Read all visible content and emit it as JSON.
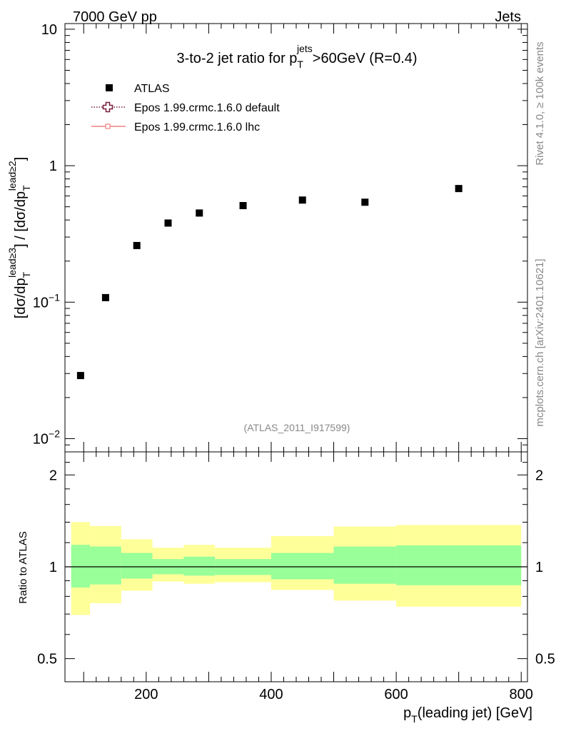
{
  "chart_data": [
    {
      "type": "scatter",
      "panel": "main",
      "header_left": "7000 GeV pp",
      "header_right": "Jets",
      "title": {
        "main": "3-to-2 jet ratio for p",
        "sub": "T",
        "sup": "jets",
        "tail": ">60GeV (R=0.4)"
      },
      "ylabel": {
        "a": "[dσ/dp",
        "a_sub": "T",
        "a_sup": "lead≥3",
        "mid": "] / [dσ/dp",
        "b_sub": "T",
        "b_sup": "lead≥2",
        "end": "]"
      },
      "yscale": "log",
      "ylim": [
        0.008,
        11
      ],
      "xlim": [
        70,
        810
      ],
      "y_tick_labels": [
        {
          "value": 10,
          "label": "10"
        },
        {
          "value": 1,
          "label": "1"
        },
        {
          "value": 0.1,
          "label": "10",
          "exp": "−1"
        },
        {
          "value": 0.01,
          "label": "10",
          "exp": "−2"
        }
      ],
      "series": [
        {
          "name": "ATLAS",
          "marker": "square",
          "color": "#000000",
          "x": [
            95,
            135,
            185,
            235,
            285,
            355,
            450,
            550,
            700
          ],
          "values": [
            0.029,
            0.108,
            0.26,
            0.38,
            0.45,
            0.51,
            0.56,
            0.54,
            0.68
          ]
        }
      ],
      "legend": [
        {
          "label": "ATLAS",
          "style": "square",
          "color": "#000000"
        },
        {
          "label": "Epos 1.99.crmc.1.6.0 default",
          "style": "open-cross-dotted",
          "color": "#7a1f3d"
        },
        {
          "label": "Epos 1.99.crmc.1.6.0 lhc",
          "style": "line-marker",
          "color": "#f08080"
        }
      ],
      "legend_position": "top-left",
      "watermark": "(ATLAS_2011_I917599)",
      "side_top": "Rivet 4.1.0, ≥ 100k events",
      "side_bottom": "mcplots.cern.ch [arXiv:2401.10621]"
    },
    {
      "type": "area",
      "panel": "ratio",
      "ylabel": "Ratio to ATLAS",
      "xlabel": {
        "main": "p",
        "sub": "T",
        "tail": "(leading jet) [GeV]"
      },
      "yscale": "log",
      "ylim": [
        0.42,
        2.38
      ],
      "xlim": [
        70,
        810
      ],
      "x_ticks": [
        200,
        400,
        600,
        800
      ],
      "x_tick_labels": [
        "200",
        "400",
        "600",
        "800"
      ],
      "y_ticks": [
        0.5,
        1,
        2
      ],
      "y_tick_labels": [
        "0.5",
        "1",
        "2"
      ],
      "reference_line": 1,
      "bands": [
        {
          "x0": 80,
          "x1": 110,
          "yellow": [
            0.695,
            1.4
          ],
          "green": [
            0.855,
            1.18
          ]
        },
        {
          "x0": 110,
          "x1": 160,
          "yellow": [
            0.76,
            1.36
          ],
          "green": [
            0.875,
            1.165
          ]
        },
        {
          "x0": 160,
          "x1": 210,
          "yellow": [
            0.835,
            1.23
          ],
          "green": [
            0.915,
            1.11
          ]
        },
        {
          "x0": 210,
          "x1": 260,
          "yellow": [
            0.895,
            1.155
          ],
          "green": [
            0.945,
            1.06
          ]
        },
        {
          "x0": 260,
          "x1": 310,
          "yellow": [
            0.88,
            1.18
          ],
          "green": [
            0.935,
            1.08
          ]
        },
        {
          "x0": 310,
          "x1": 400,
          "yellow": [
            0.89,
            1.155
          ],
          "green": [
            0.94,
            1.06
          ]
        },
        {
          "x0": 400,
          "x1": 500,
          "yellow": [
            0.84,
            1.26
          ],
          "green": [
            0.91,
            1.11
          ]
        },
        {
          "x0": 500,
          "x1": 600,
          "yellow": [
            0.775,
            1.355
          ],
          "green": [
            0.88,
            1.165
          ]
        },
        {
          "x0": 600,
          "x1": 800,
          "yellow": [
            0.74,
            1.37
          ],
          "green": [
            0.87,
            1.175
          ]
        }
      ],
      "colors": {
        "yellow": "#ffff99",
        "green": "#99ff99"
      }
    }
  ]
}
